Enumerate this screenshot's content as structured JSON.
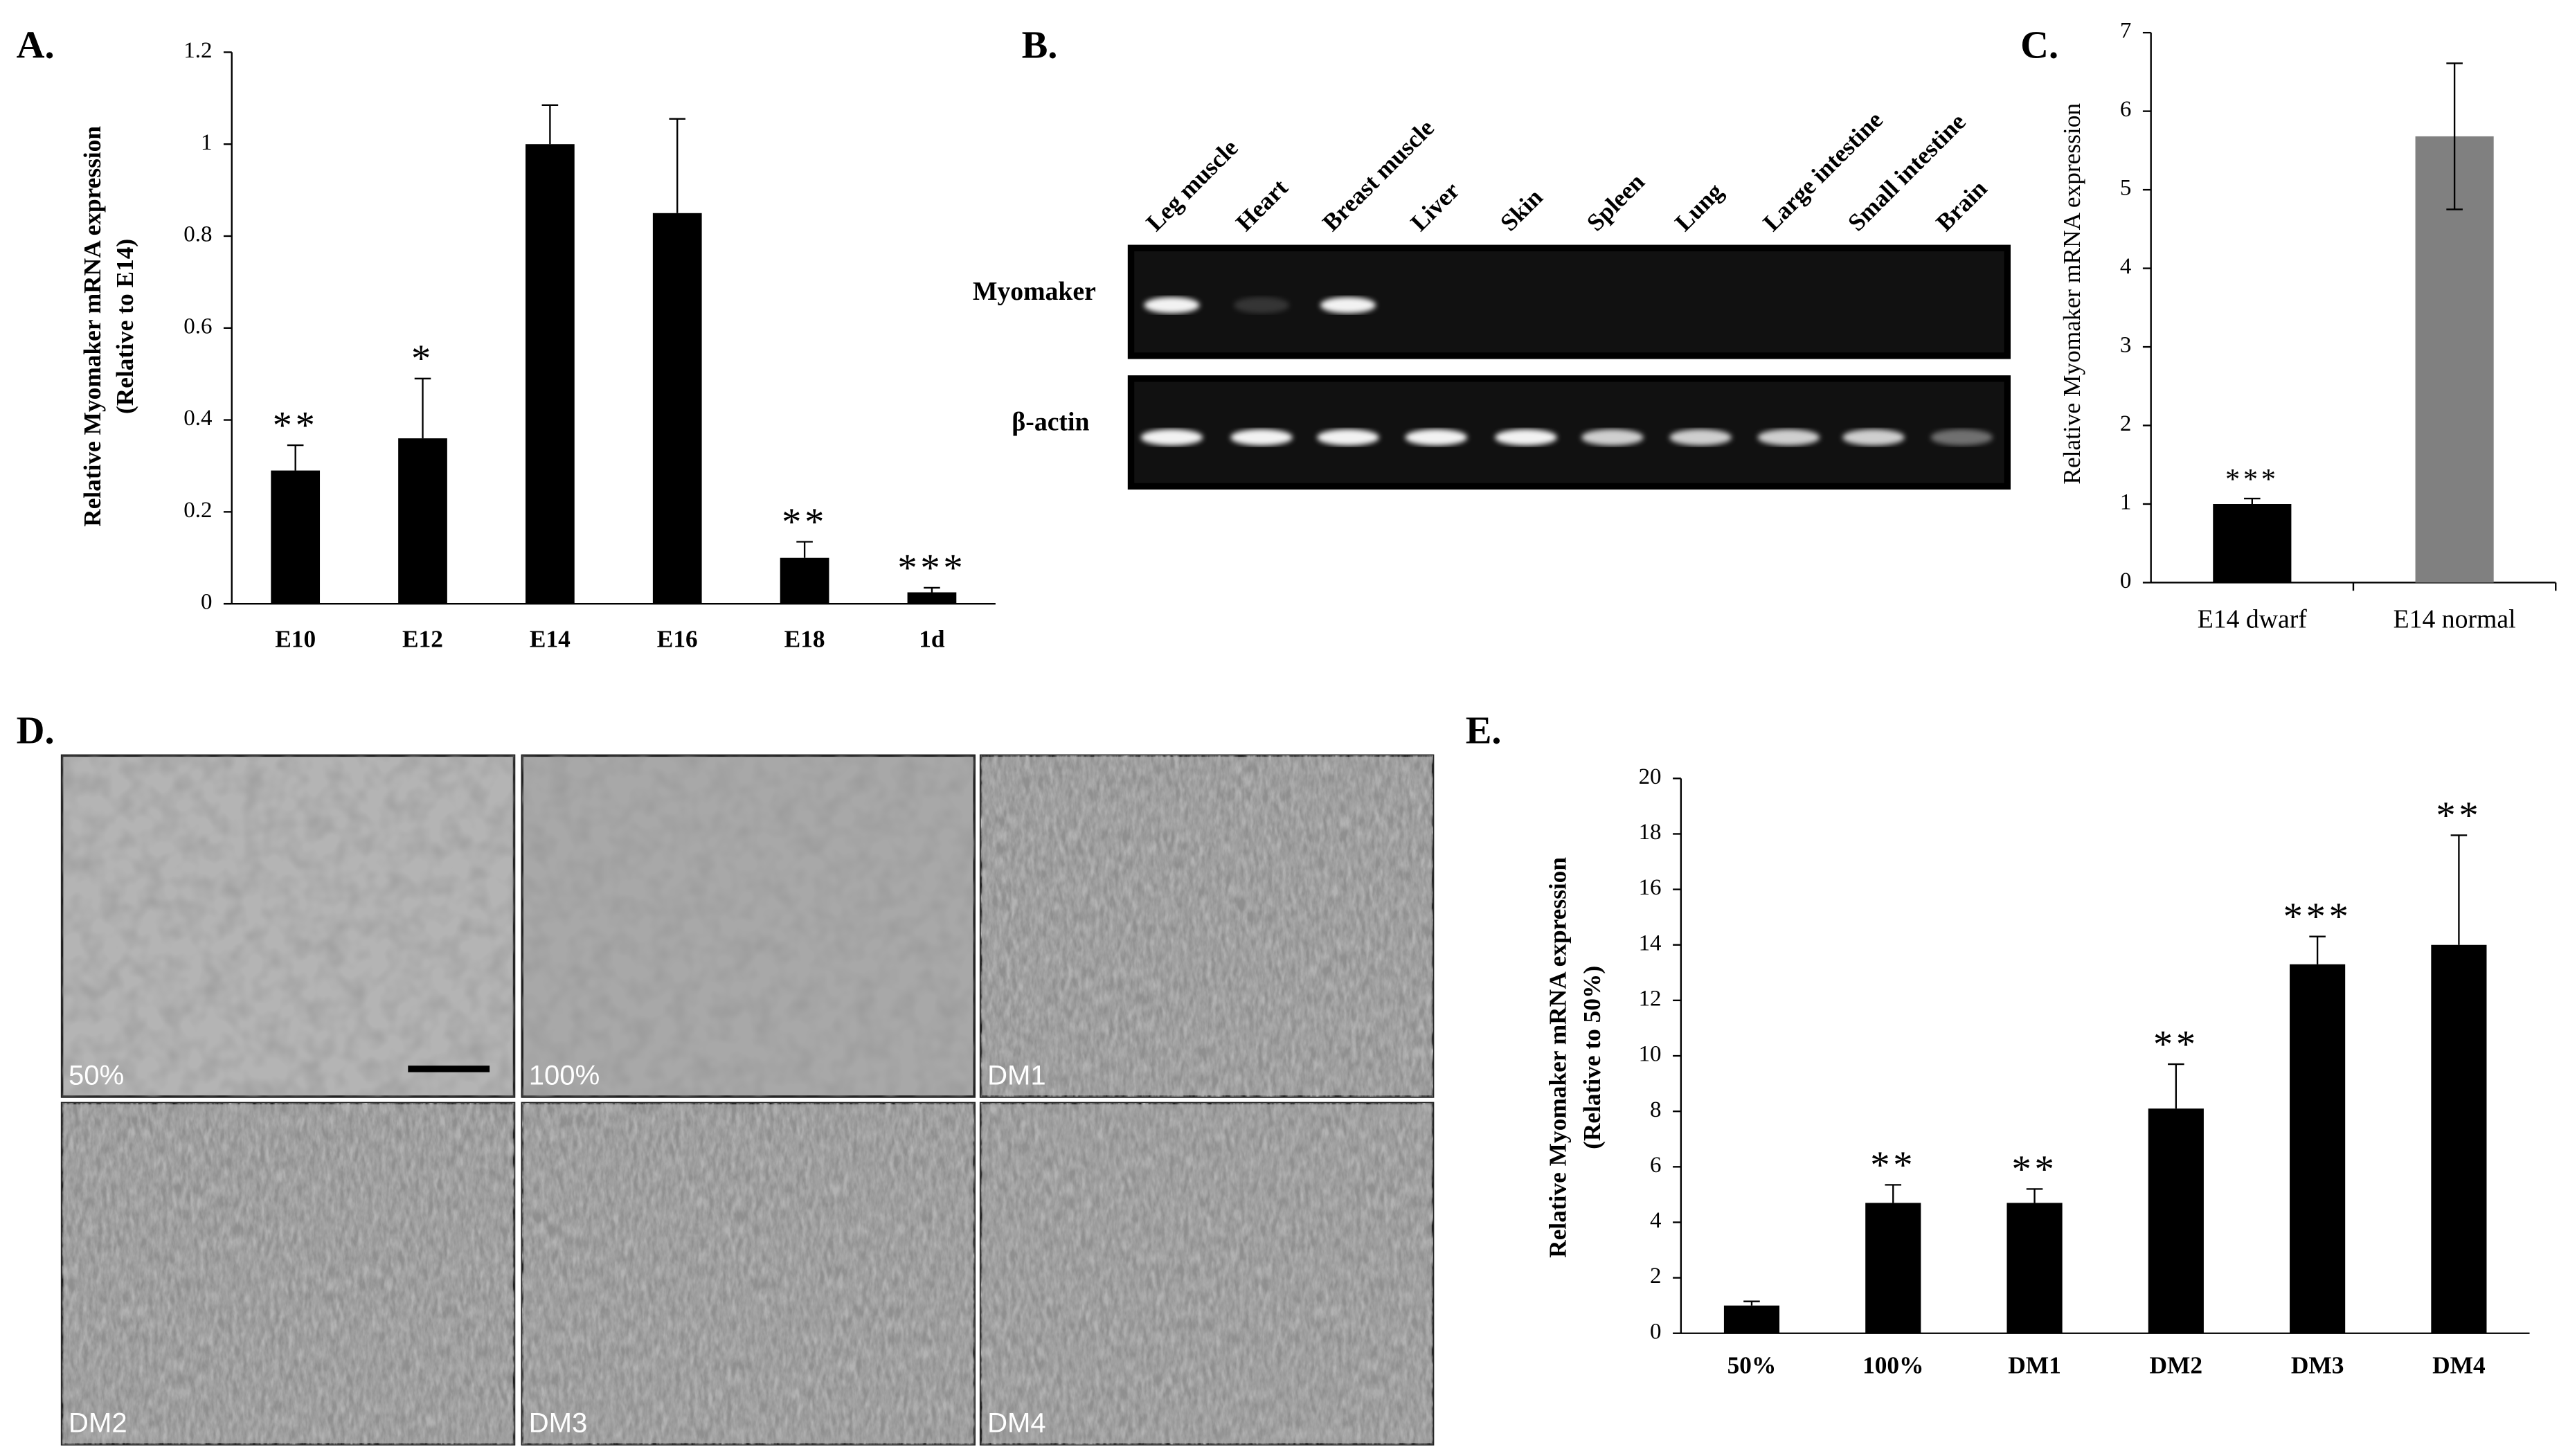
{
  "chart_data": [
    {
      "type": "bar",
      "panel_label": "A.",
      "ylabel": [
        "Relative Myomaker mRNA expression",
        "(Relative to E14)"
      ],
      "categories": [
        "E10",
        "E12",
        "E14",
        "E16",
        "E18",
        "1d"
      ],
      "values": [
        0.29,
        0.36,
        1.0,
        0.85,
        0.1,
        0.025
      ],
      "errors": [
        0.055,
        0.13,
        0.085,
        0.205,
        0.035,
        0.01
      ],
      "annotations": [
        "**",
        "*",
        null,
        null,
        "**",
        "***"
      ],
      "colors": [
        "#000000",
        "#000000",
        "#000000",
        "#000000",
        "#000000",
        "#000000"
      ],
      "ylim": [
        0,
        1.2
      ],
      "yticks": [
        0,
        0.2,
        0.4,
        0.6,
        0.8,
        1,
        1.2
      ]
    },
    {
      "type": "bar",
      "panel_label": "C.",
      "ylabel": [
        "Relative Myomaker mRNA expression"
      ],
      "categories": [
        "E14 dwarf",
        "E14 normal"
      ],
      "values": [
        1.0,
        5.68
      ],
      "errors": [
        0.07,
        0.93
      ],
      "annotations": [
        "***",
        null
      ],
      "colors": [
        "#000000",
        "#808080"
      ],
      "ylim": [
        0,
        7
      ],
      "yticks": [
        0,
        1,
        2,
        3,
        4,
        5,
        6,
        7
      ]
    },
    {
      "type": "bar",
      "panel_label": "E.",
      "ylabel": [
        "Relative Myomaker mRNA expression",
        "(Relative to 50%)"
      ],
      "categories": [
        "50%",
        "100%",
        "DM1",
        "DM2",
        "DM3",
        "DM4"
      ],
      "values": [
        1.0,
        4.7,
        4.7,
        8.1,
        13.3,
        14.0
      ],
      "errors": [
        0.15,
        0.65,
        0.5,
        1.6,
        1.0,
        3.95
      ],
      "annotations": [
        null,
        "**",
        "**",
        "**",
        "***",
        "**"
      ],
      "colors": [
        "#000000",
        "#000000",
        "#000000",
        "#000000",
        "#000000",
        "#000000"
      ],
      "ylim": [
        0,
        20
      ],
      "yticks": [
        0,
        2,
        4,
        6,
        8,
        10,
        12,
        14,
        16,
        18,
        20
      ]
    }
  ],
  "gel": {
    "panel_label": "B.",
    "lanes": [
      "Leg muscle",
      "Heart",
      "Breast muscle",
      "Liver",
      "Skin",
      "Spleen",
      "Lung",
      "Large intestine",
      "Small intestine",
      "Brain"
    ],
    "rows": [
      "Myomaker",
      "β-actin"
    ]
  },
  "micrographs": {
    "panel_label": "D.",
    "labels": [
      "50%",
      "100%",
      "DM1",
      "DM2",
      "DM3",
      "DM4"
    ]
  }
}
